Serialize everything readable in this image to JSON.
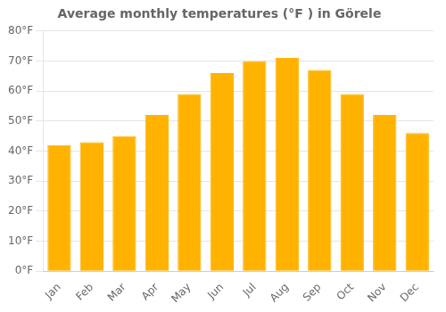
{
  "chart_data": {
    "type": "bar",
    "title": "Average monthly temperatures (°F ) in Görele",
    "categories": [
      "Jan",
      "Feb",
      "Mar",
      "Apr",
      "May",
      "Jun",
      "Jul",
      "Aug",
      "Sep",
      "Oct",
      "Nov",
      "Dec"
    ],
    "values": [
      42,
      43,
      45,
      52,
      59,
      66,
      70,
      71,
      67,
      59,
      52,
      46
    ],
    "color": "#FFB300",
    "ylim": [
      0,
      80
    ],
    "yticks": [
      {
        "value": 0,
        "label": "0°F"
      },
      {
        "value": 10,
        "label": "10°F"
      },
      {
        "value": 20,
        "label": "20°F"
      },
      {
        "value": 30,
        "label": "30°F"
      },
      {
        "value": 40,
        "label": "40°F"
      },
      {
        "value": 50,
        "label": "50°F"
      },
      {
        "value": 60,
        "label": "60°F"
      },
      {
        "value": 70,
        "label": "70°F"
      },
      {
        "value": 80,
        "label": "80°F"
      }
    ],
    "grid": true
  }
}
